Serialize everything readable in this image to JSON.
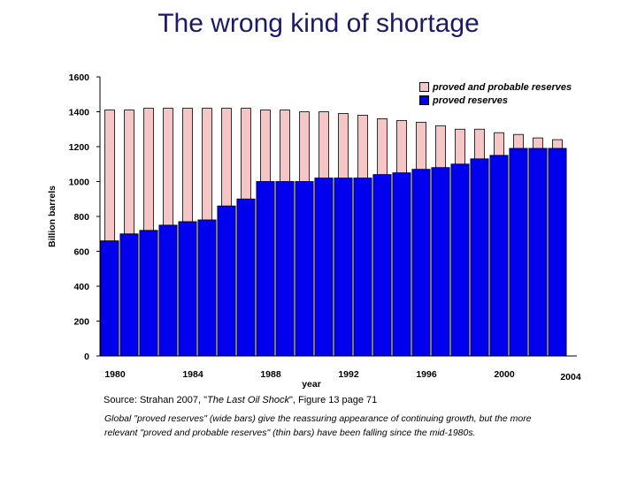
{
  "page_title": "The wrong kind of shortage",
  "chart_data": {
    "type": "bar",
    "ylabel": "Billion barrels",
    "xlabel": "year",
    "ylim": [
      0,
      1600
    ],
    "yticks": [
      0,
      200,
      400,
      600,
      800,
      1000,
      1200,
      1400,
      1600
    ],
    "xtick_labels": [
      "1980",
      "1984",
      "1988",
      "1992",
      "1996",
      "2000",
      "2004"
    ],
    "x": [
      1980,
      1981,
      1982,
      1983,
      1984,
      1985,
      1986,
      1987,
      1988,
      1989,
      1990,
      1991,
      1992,
      1993,
      1994,
      1995,
      1996,
      1997,
      1998,
      1999,
      2000,
      2001,
      2002,
      2003
    ],
    "series": [
      {
        "name": "proved and probable reserves",
        "color": "#f4c6c6",
        "values": [
          1410,
          1410,
          1420,
          1420,
          1420,
          1420,
          1420,
          1420,
          1410,
          1410,
          1400,
          1400,
          1390,
          1380,
          1360,
          1350,
          1340,
          1320,
          1300,
          1300,
          1280,
          1270,
          1250,
          1240
        ]
      },
      {
        "name": "proved reserves",
        "color": "#0000ee",
        "values": [
          660,
          700,
          720,
          750,
          770,
          780,
          860,
          900,
          1000,
          1000,
          1000,
          1020,
          1020,
          1020,
          1040,
          1050,
          1070,
          1080,
          1100,
          1130,
          1150,
          1190,
          1190,
          1190
        ]
      }
    ],
    "legend": {
      "position": "top-right",
      "labels": [
        "proved and probable reserves",
        "proved reserves"
      ]
    }
  },
  "source": {
    "prefix": "Source: Strahan 2007, \"",
    "title": "The Last Oil Shock",
    "suffix": "\", Figure 13 page 71"
  },
  "note": "Global \"proved reserves\" (wide bars) give the reassuring appearance of continuing growth, but the more relevant \"proved and probable reserves\" (thin bars) have been falling since the mid-1980s."
}
